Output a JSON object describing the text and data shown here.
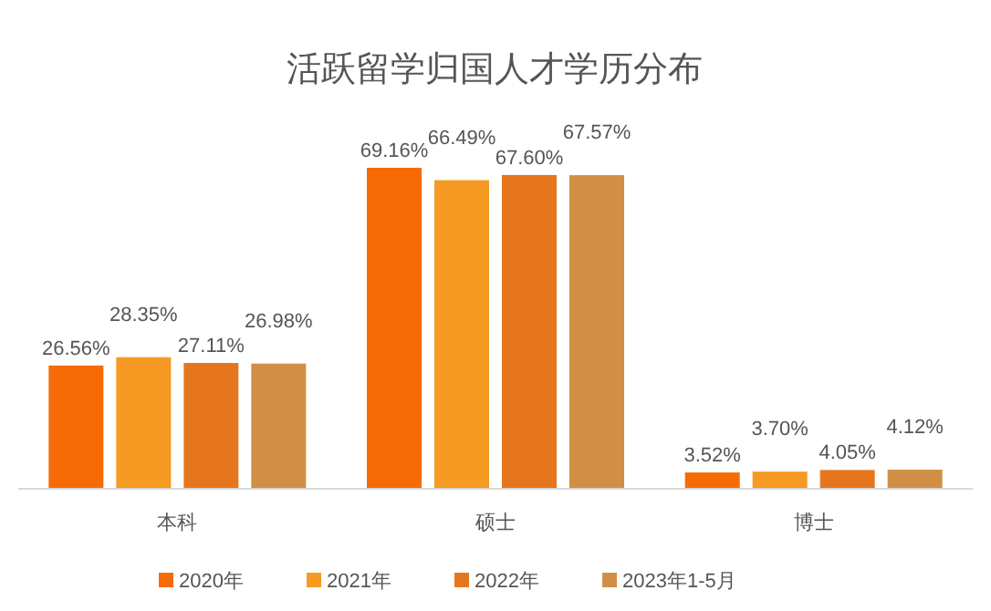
{
  "chart_data": {
    "type": "bar",
    "title": "活跃留学归国人才学历分布",
    "categories": [
      "本科",
      "硕士",
      "博士"
    ],
    "series": [
      {
        "name": "2020年",
        "color": "#f76b07",
        "values": [
          26.56,
          69.16,
          3.52
        ],
        "value_labels": [
          "26.56%",
          "69.16%",
          "3.52%"
        ]
      },
      {
        "name": "2021年",
        "color": "#f59a23",
        "values": [
          28.35,
          66.49,
          3.7
        ],
        "value_labels": [
          "28.35%",
          "66.49%",
          "3.70%"
        ]
      },
      {
        "name": "2022年",
        "color": "#e5761e",
        "values": [
          27.11,
          67.6,
          4.05
        ],
        "value_labels": [
          "27.11%",
          "67.60%",
          "4.05%"
        ]
      },
      {
        "name": "2023年1-5月",
        "color": "#d18f45",
        "values": [
          26.98,
          67.57,
          4.12
        ],
        "value_labels": [
          "26.98%",
          "67.57%",
          "4.12%"
        ]
      }
    ],
    "legend": "bottom"
  }
}
